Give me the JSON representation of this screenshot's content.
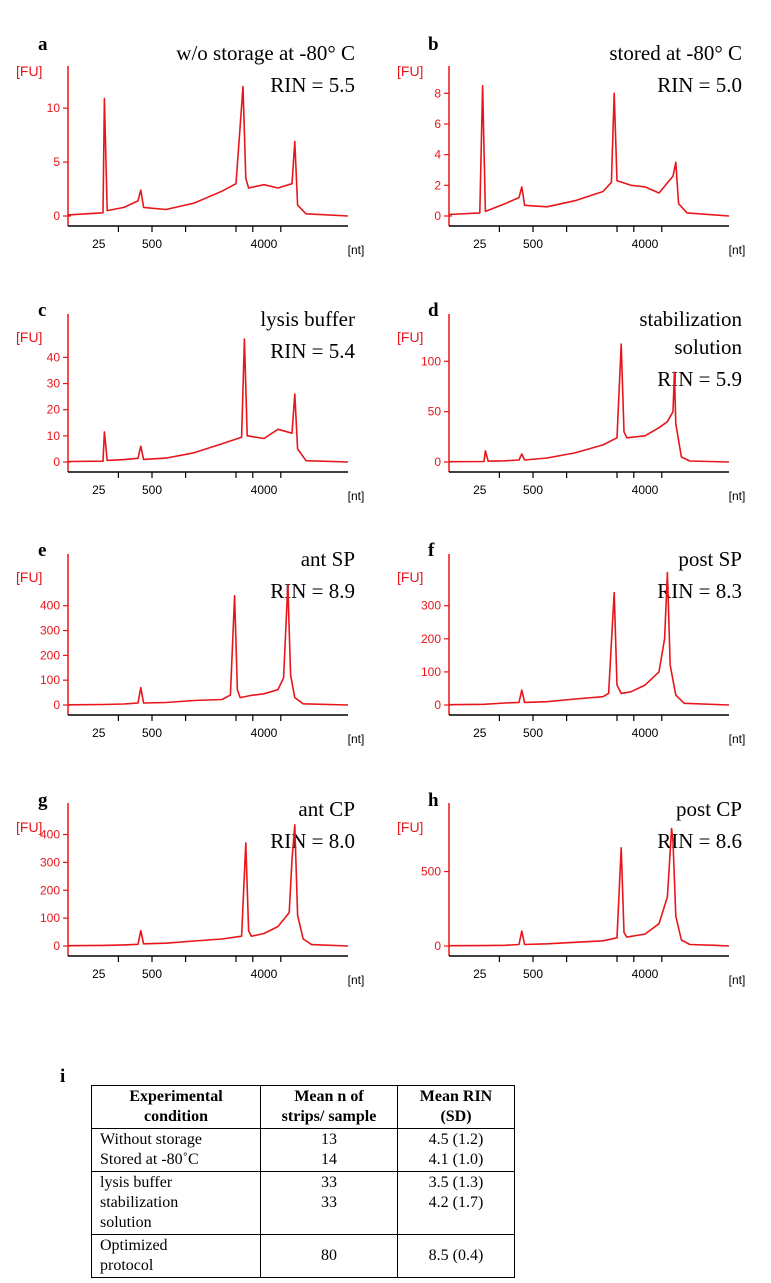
{
  "colors": {
    "trace": "#e8161b",
    "axis": "#000000"
  },
  "chart_data": [
    {
      "type": "line",
      "panel": "a",
      "title": "w/o storage at -80° C",
      "subtitle": "RIN = 5.5",
      "ylabel": "[FU]",
      "xlabel": "[nt]",
      "yticks": [
        0,
        5,
        10
      ],
      "ylim": [
        -0.8,
        12.8
      ],
      "xticks": [
        "25",
        "500",
        "4000"
      ],
      "x": [
        0,
        0.125,
        0.13,
        0.14,
        0.2,
        0.25,
        0.26,
        0.27,
        0.35,
        0.45,
        0.55,
        0.6,
        0.625,
        0.635,
        0.645,
        0.7,
        0.75,
        0.8,
        0.81,
        0.82,
        0.85,
        1.0
      ],
      "y": [
        0.1,
        0.3,
        10.9,
        0.5,
        0.8,
        1.4,
        2.4,
        0.8,
        0.6,
        1.2,
        2.3,
        3.0,
        12.0,
        3.5,
        2.6,
        2.9,
        2.6,
        3.0,
        6.9,
        1.0,
        0.2,
        0.0
      ]
    },
    {
      "type": "line",
      "panel": "b",
      "title": "stored at -80° C",
      "subtitle": "RIN = 5.0",
      "ylabel": "[FU]",
      "xlabel": "[nt]",
      "yticks": [
        0,
        2,
        4,
        6,
        8
      ],
      "ylim": [
        -0.5,
        9.0
      ],
      "xticks": [
        "25",
        "500",
        "4000"
      ],
      "x": [
        0,
        0.11,
        0.12,
        0.13,
        0.2,
        0.25,
        0.26,
        0.27,
        0.35,
        0.45,
        0.55,
        0.58,
        0.59,
        0.6,
        0.65,
        0.7,
        0.75,
        0.8,
        0.81,
        0.82,
        0.85,
        1.0
      ],
      "y": [
        0.1,
        0.2,
        8.5,
        0.3,
        0.8,
        1.2,
        1.9,
        0.7,
        0.6,
        1.0,
        1.6,
        2.2,
        8.0,
        2.3,
        2.0,
        1.9,
        1.5,
        2.6,
        3.5,
        0.8,
        0.2,
        0.0
      ]
    },
    {
      "type": "line",
      "panel": "c",
      "title": "lysis buffer",
      "subtitle": "RIN = 5.4",
      "ylabel": "[FU]",
      "xlabel": "[nt]",
      "yticks": [
        0,
        10,
        20,
        30,
        40
      ],
      "ylim": [
        -3,
        52
      ],
      "xticks": [
        "25",
        "500",
        "4000"
      ],
      "x": [
        0,
        0.125,
        0.13,
        0.14,
        0.2,
        0.25,
        0.26,
        0.27,
        0.35,
        0.45,
        0.55,
        0.62,
        0.63,
        0.64,
        0.7,
        0.75,
        0.8,
        0.81,
        0.82,
        0.85,
        1.0
      ],
      "y": [
        0.2,
        0.3,
        11.5,
        0.6,
        0.9,
        1.4,
        6.0,
        1.0,
        1.5,
        3.5,
        7.0,
        9.5,
        47.0,
        10.0,
        9.0,
        12.5,
        11.0,
        26.0,
        5.0,
        0.5,
        0.0
      ]
    },
    {
      "type": "line",
      "panel": "d",
      "title": "stabilization solution",
      "subtitle": "RIN = 5.9",
      "ylabel": "[FU]",
      "xlabel": "[nt]",
      "yticks": [
        0,
        50,
        100
      ],
      "ylim": [
        -8,
        135
      ],
      "xticks": [
        "25",
        "500",
        "4000"
      ],
      "x": [
        0,
        0.125,
        0.13,
        0.14,
        0.2,
        0.25,
        0.26,
        0.27,
        0.35,
        0.45,
        0.55,
        0.6,
        0.615,
        0.625,
        0.635,
        0.7,
        0.75,
        0.78,
        0.8,
        0.805,
        0.81,
        0.83,
        0.86,
        1.0
      ],
      "y": [
        0.3,
        0.5,
        11.0,
        0.8,
        1.2,
        2.0,
        8.0,
        2.0,
        4.0,
        9.0,
        17.0,
        24.0,
        117.0,
        30.0,
        24.0,
        26.0,
        34.0,
        40.0,
        50.0,
        89.0,
        38.0,
        5.0,
        1.0,
        0.0
      ]
    },
    {
      "type": "line",
      "panel": "e",
      "title": "ant SP",
      "subtitle": "RIN = 8.9",
      "ylabel": "[FU]",
      "xlabel": "[nt]",
      "yticks": [
        0,
        100,
        200,
        300,
        400
      ],
      "ylim": [
        -30,
        560
      ],
      "xticks": [
        "25",
        "500",
        "4000"
      ],
      "x": [
        0,
        0.125,
        0.2,
        0.25,
        0.26,
        0.27,
        0.35,
        0.45,
        0.55,
        0.58,
        0.595,
        0.605,
        0.615,
        0.65,
        0.7,
        0.75,
        0.77,
        0.785,
        0.795,
        0.81,
        0.84,
        1.0
      ],
      "y": [
        1,
        2,
        4,
        8,
        70,
        8,
        10,
        18,
        22,
        40,
        440,
        60,
        30,
        38,
        45,
        62,
        110,
        485,
        120,
        30,
        5,
        0
      ]
    },
    {
      "type": "line",
      "panel": "f",
      "title": "post SP",
      "subtitle": "RIN = 8.3",
      "ylabel": "[FU]",
      "xlabel": "[nt]",
      "yticks": [
        0,
        100,
        200,
        300
      ],
      "ylim": [
        -25,
        420
      ],
      "xticks": [
        "25",
        "500",
        "4000"
      ],
      "x": [
        0,
        0.125,
        0.2,
        0.25,
        0.26,
        0.27,
        0.35,
        0.45,
        0.55,
        0.57,
        0.59,
        0.6,
        0.615,
        0.65,
        0.7,
        0.75,
        0.77,
        0.78,
        0.79,
        0.81,
        0.84,
        1.0
      ],
      "y": [
        1,
        2,
        6,
        8,
        45,
        8,
        10,
        18,
        25,
        35,
        340,
        60,
        35,
        40,
        60,
        100,
        200,
        400,
        120,
        30,
        5,
        0
      ]
    },
    {
      "type": "line",
      "panel": "g",
      "title": "ant CP",
      "subtitle": "RIN = 8.0",
      "ylabel": "[FU]",
      "xlabel": "[nt]",
      "yticks": [
        0,
        100,
        200,
        300,
        400
      ],
      "ylim": [
        -30,
        470
      ],
      "xticks": [
        "25",
        "500",
        "4000"
      ],
      "x": [
        0,
        0.125,
        0.2,
        0.25,
        0.26,
        0.27,
        0.35,
        0.45,
        0.55,
        0.62,
        0.635,
        0.645,
        0.655,
        0.7,
        0.75,
        0.79,
        0.8,
        0.81,
        0.82,
        0.84,
        0.87,
        1.0
      ],
      "y": [
        1,
        2,
        4,
        6,
        55,
        8,
        10,
        18,
        25,
        35,
        370,
        55,
        35,
        45,
        70,
        120,
        310,
        435,
        110,
        25,
        5,
        0
      ]
    },
    {
      "type": "line",
      "panel": "h",
      "title": "post CP",
      "subtitle": "RIN = 8.6",
      "ylabel": "[FU]",
      "xlabel": "[nt]",
      "yticks": [
        0,
        500
      ],
      "ylim": [
        -50,
        880
      ],
      "xticks": [
        "25",
        "500",
        "4000"
      ],
      "x": [
        0,
        0.125,
        0.2,
        0.25,
        0.26,
        0.27,
        0.35,
        0.45,
        0.55,
        0.6,
        0.615,
        0.625,
        0.635,
        0.7,
        0.75,
        0.78,
        0.795,
        0.8,
        0.81,
        0.83,
        0.86,
        0.95,
        1.0
      ],
      "y": [
        2,
        3,
        5,
        10,
        100,
        10,
        15,
        25,
        35,
        55,
        660,
        90,
        60,
        80,
        150,
        330,
        790,
        700,
        200,
        40,
        10,
        5,
        0
      ]
    },
    {
      "type": "table",
      "panel": "i",
      "headers": [
        [
          "Experimental",
          "condition"
        ],
        [
          "Mean n of",
          "strips/ sample"
        ],
        [
          "Mean RIN",
          "(SD)"
        ]
      ],
      "groups": [
        {
          "conditions": [
            "Without storage",
            "Stored at -80˚C"
          ],
          "n": [
            "13",
            "14"
          ],
          "rin": [
            "4.5 (1.2)",
            "4.1 (1.0)"
          ]
        },
        {
          "conditions": [
            "lysis buffer",
            "stabilization",
            "solution"
          ],
          "n": [
            "33",
            "33",
            ""
          ],
          "rin": [
            "3.5 (1.3)",
            "4.2 (1.7)",
            ""
          ]
        },
        {
          "conditions": [
            "Optimized",
            "protocol"
          ],
          "n": [
            "80"
          ],
          "rin": [
            "8.5 (0.4)"
          ]
        }
      ]
    }
  ]
}
